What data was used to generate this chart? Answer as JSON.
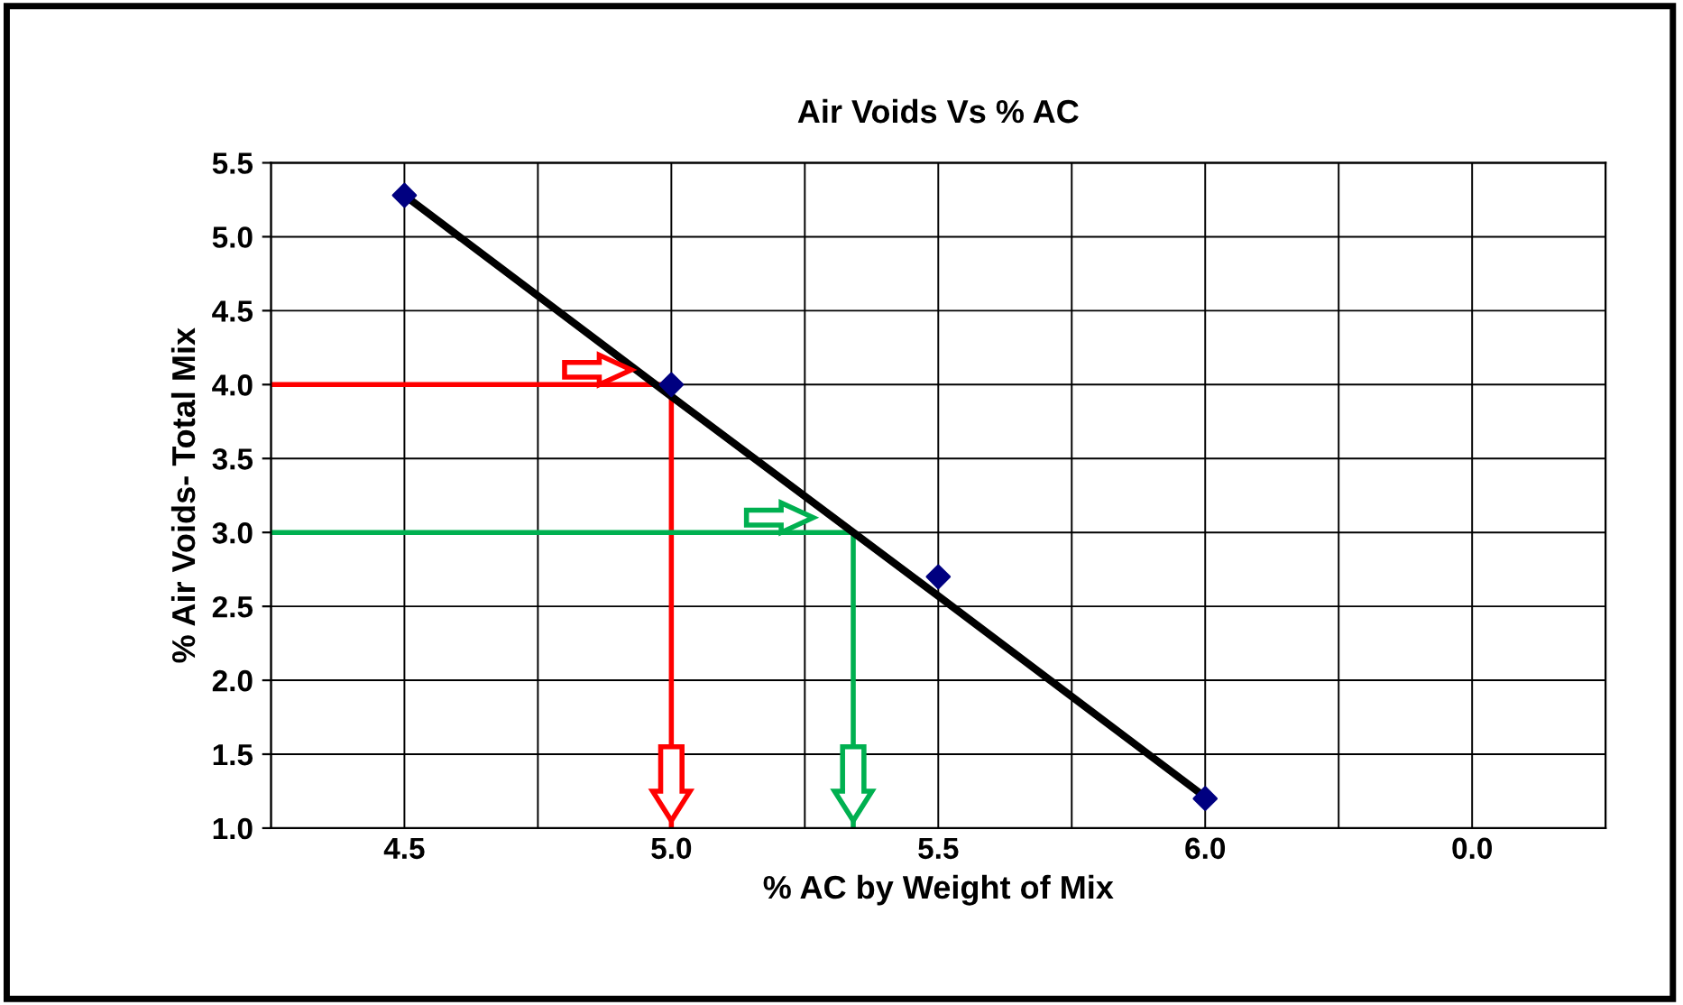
{
  "chart_data": {
    "type": "scatter",
    "title": "Air Voids Vs % AC",
    "xlabel": "% AC by Weight of Mix",
    "ylabel": "% Air Voids- Total Mix",
    "categories": [
      "4.5",
      "5.0",
      "5.5",
      "6.0",
      "0.0"
    ],
    "series": [
      {
        "color": "#000080",
        "values": [
          5.28,
          4.0,
          2.7,
          1.2,
          null
        ],
        "marker": "diamond"
      },
      {
        "type": "line",
        "color": "#000000",
        "values": [
          5.28,
          3.92,
          2.57,
          1.21,
          null
        ],
        "marker": "none"
      }
    ],
    "ylim": [
      1.0,
      5.5
    ],
    "yticks": [
      {
        "value": 1.0,
        "label": "1.0"
      },
      {
        "value": 1.5,
        "label": "1.5"
      },
      {
        "value": 2.0,
        "label": "2.0"
      },
      {
        "value": 2.5,
        "label": "2.5"
      },
      {
        "value": 3.0,
        "label": "3.0"
      },
      {
        "value": 3.5,
        "label": "3.5"
      },
      {
        "value": 4.0,
        "label": "4.0"
      },
      {
        "value": 4.5,
        "label": "4.5"
      },
      {
        "value": 5.0,
        "label": "5.0"
      },
      {
        "value": 5.5,
        "label": "5.5"
      }
    ],
    "ref_lines": [
      {
        "axis": "y",
        "value": 4.0,
        "color": "#ff0000"
      },
      {
        "axis": "y",
        "value": 3.0,
        "color": "#00b050"
      }
    ],
    "grid": true
  }
}
